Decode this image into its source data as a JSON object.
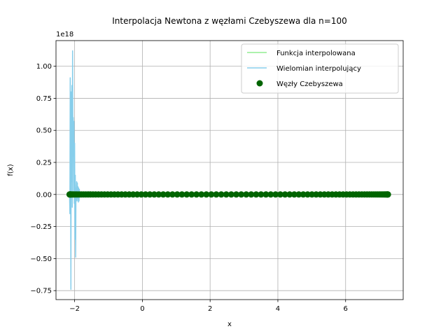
{
  "chart_data": {
    "type": "line",
    "title": "Interpolacja Newtona z węzłami Czebyszewa dla n=100",
    "xlabel": "x",
    "ylabel": "f(x)",
    "y_offset_label": "1e18",
    "y_scale": 1e+18,
    "xlim": [
      -2.55,
      7.7
    ],
    "ylim": [
      -0.82,
      1.2
    ],
    "x_ticks": [
      -2,
      0,
      2,
      4,
      6
    ],
    "y_ticks": [
      -0.75,
      -0.5,
      -0.25,
      0.0,
      0.25,
      0.5,
      0.75,
      1.0
    ],
    "x_tick_labels": [
      "−2",
      "0",
      "2",
      "4",
      "6"
    ],
    "y_tick_labels": [
      "−0.75",
      "−0.50",
      "−0.25",
      "0.00",
      "0.25",
      "0.50",
      "0.75",
      "1.00"
    ],
    "grid": true,
    "legend_position": "top-right",
    "nodes": {
      "count": 100,
      "x_min": -2.15,
      "x_max": 7.25
    },
    "series": [
      {
        "name": "Funkcja interpolowana",
        "kind": "line",
        "color": "#90ee90",
        "x": [
          -2.15,
          7.25
        ],
        "y": [
          0,
          0
        ]
      },
      {
        "name": "Wielomian interpolujący",
        "kind": "line",
        "color": "#87ceeb",
        "x": [
          -2.15,
          -2.14,
          -2.13,
          -2.12,
          -2.11,
          -2.1,
          -2.09,
          -2.08,
          -2.07,
          -2.06,
          -2.05,
          -2.04,
          -2.03,
          -2.02,
          -2.01,
          -2.0,
          -1.99,
          -1.98,
          -1.97,
          -1.96,
          -1.95,
          -1.94,
          -1.93,
          -1.92,
          -1.91,
          -1.9,
          -1.89,
          -1.88,
          -1.87,
          -1.86,
          -1.85,
          -1.84,
          -1.83,
          -1.82,
          -1.8,
          -1.78,
          -1.75,
          -1.7,
          -1.6,
          -1.4,
          -1.0,
          0.0,
          2.0,
          4.0,
          6.0,
          7.25
        ],
        "y": [
          0.0,
          -0.15,
          0.91,
          0.3,
          -0.74,
          0.8,
          0.1,
          0.85,
          -0.1,
          1.12,
          0.3,
          0.6,
          0.0,
          0.57,
          -0.07,
          0.4,
          -0.35,
          0.15,
          -0.49,
          0.05,
          0.02,
          0.1,
          -0.05,
          0.09,
          -0.03,
          0.06,
          -0.06,
          0.05,
          -0.05,
          0.04,
          -0.02,
          0.02,
          -0.02,
          0.01,
          0.01,
          0.005,
          0.0,
          0.0,
          0.0,
          0.0,
          0.0,
          0.0,
          0.0,
          0.0,
          0.0,
          0.0
        ]
      },
      {
        "name": "Węzły Czebyszewa",
        "kind": "scatter",
        "color": "#006400",
        "y_value": 0
      }
    ]
  }
}
